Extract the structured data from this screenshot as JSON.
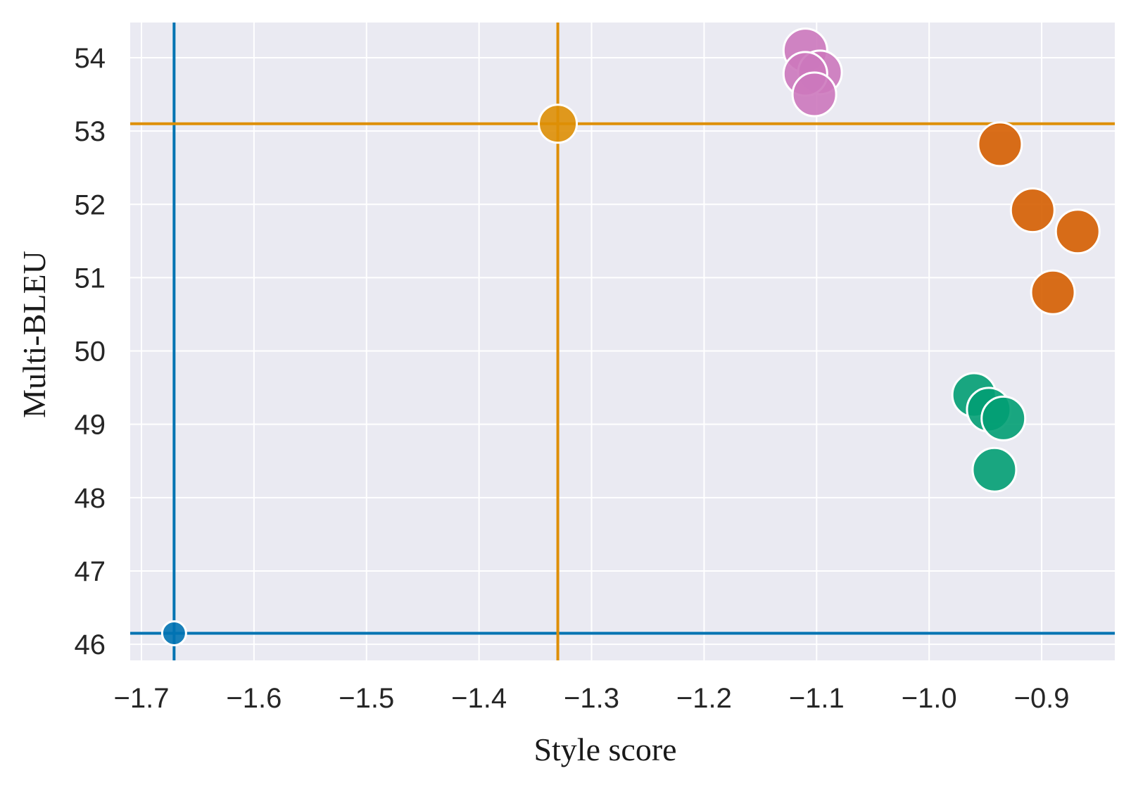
{
  "chart_data": {
    "type": "scatter",
    "title": "",
    "xlabel": "Style score",
    "ylabel": "Multi-BLEU",
    "xlim": [
      -1.71,
      -0.835
    ],
    "ylim": [
      45.78,
      54.48
    ],
    "xticks": [
      -1.7,
      -1.6,
      -1.5,
      -1.4,
      -1.3,
      -1.2,
      -1.1,
      -1.0,
      -0.9
    ],
    "xtick_labels": [
      "−1.7",
      "−1.6",
      "−1.5",
      "−1.4",
      "−1.3",
      "−1.2",
      "−1.1",
      "−1.0",
      "−0.9"
    ],
    "yticks": [
      46,
      47,
      48,
      49,
      50,
      51,
      52,
      53,
      54
    ],
    "ytick_labels": [
      "46",
      "47",
      "48",
      "49",
      "50",
      "51",
      "52",
      "53",
      "54"
    ],
    "grid": true,
    "background": "#eaeaf2",
    "grid_color": "#ffffff",
    "reference_lines": [
      {
        "x": -1.671,
        "y": 46.15,
        "color": "#0173b2"
      },
      {
        "x": -1.33,
        "y": 53.1,
        "color": "#de8f05"
      }
    ],
    "series": [
      {
        "color": "#0173b2",
        "marker": "small",
        "points": [
          [
            -1.671,
            46.15
          ]
        ]
      },
      {
        "color": "#de8f05",
        "marker": "medium",
        "points": [
          [
            -1.33,
            53.1
          ]
        ]
      },
      {
        "color": "#cc78bc",
        "marker": "large",
        "points": [
          [
            -1.11,
            54.1
          ],
          [
            -1.097,
            53.8
          ],
          [
            -1.11,
            53.78
          ],
          [
            -1.102,
            53.5
          ]
        ]
      },
      {
        "color": "#d55e00",
        "marker": "large",
        "points": [
          [
            -0.937,
            52.82
          ],
          [
            -0.908,
            51.92
          ],
          [
            -0.868,
            51.63
          ],
          [
            -0.89,
            50.8
          ]
        ]
      },
      {
        "color": "#029e73",
        "marker": "large",
        "points": [
          [
            -0.96,
            49.4
          ],
          [
            -0.947,
            49.2
          ],
          [
            -0.934,
            49.08
          ],
          [
            -0.942,
            48.38
          ]
        ]
      }
    ]
  }
}
